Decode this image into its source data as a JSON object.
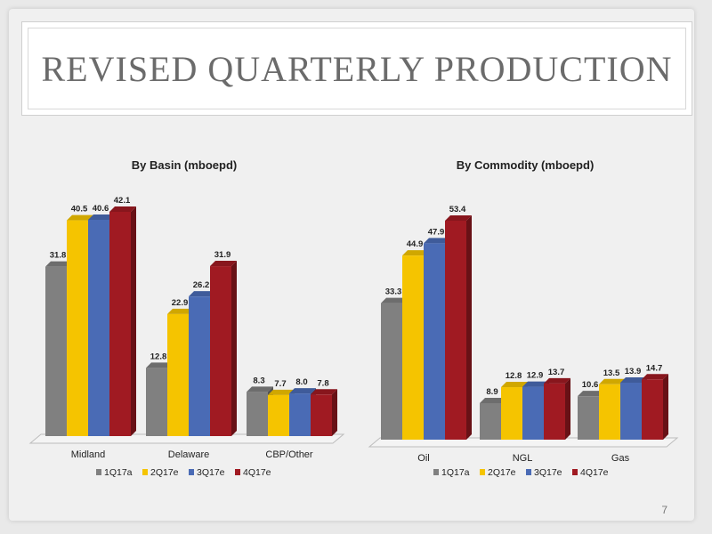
{
  "slide": {
    "title": "REVISED QUARTERLY PRODUCTION",
    "page_number": "7"
  },
  "chart_data": [
    {
      "type": "bar",
      "title": "By Basin (mboepd)",
      "categories": [
        "Midland",
        "Delaware",
        "CBP/Other"
      ],
      "series": [
        {
          "name": "1Q17a",
          "color": "#808080",
          "values": [
            31.8,
            12.8,
            8.3
          ]
        },
        {
          "name": "2Q17e",
          "color": "#f5c400",
          "values": [
            40.5,
            22.9,
            7.7
          ]
        },
        {
          "name": "3Q17e",
          "color": "#4a6bb5",
          "values": [
            40.6,
            26.2,
            8.0
          ]
        },
        {
          "name": "4Q17e",
          "color": "#a01a22",
          "values": [
            42.1,
            31.9,
            7.8
          ]
        }
      ],
      "data_labels": true,
      "ylim": [
        0,
        42.1
      ],
      "style": "3d-clustered-column",
      "legend": "bottom"
    },
    {
      "type": "bar",
      "title": "By Commodity (mboepd)",
      "categories": [
        "Oil",
        "NGL",
        "Gas"
      ],
      "series": [
        {
          "name": "1Q17a",
          "color": "#808080",
          "values": [
            33.3,
            8.9,
            10.6
          ]
        },
        {
          "name": "2Q17e",
          "color": "#f5c400",
          "values": [
            44.9,
            12.8,
            13.5
          ]
        },
        {
          "name": "3Q17e",
          "color": "#4a6bb5",
          "values": [
            47.9,
            12.9,
            13.9
          ]
        },
        {
          "name": "4Q17e",
          "color": "#a01a22",
          "values": [
            53.4,
            13.7,
            14.7
          ]
        }
      ],
      "data_labels": true,
      "ylim": [
        0,
        53.4
      ],
      "style": "3d-clustered-column",
      "legend": "bottom"
    }
  ]
}
